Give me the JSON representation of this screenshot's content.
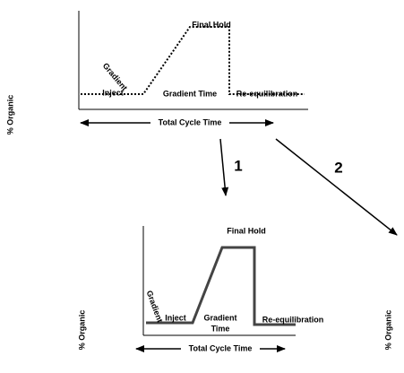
{
  "top": {
    "y_label": "% Organic",
    "final_hold": "Final Hold",
    "gradient": "Gradient",
    "inject": "Inject",
    "gradient_time": "Gradient Time",
    "re_equilibration": "Re-equilibration",
    "total_cycle_time": "Total Cycle Time"
  },
  "arrows": [
    "1",
    "2"
  ],
  "bottom": {
    "y_label": "% Organic",
    "final_hold": "Final Hold",
    "gradient": "Gradient",
    "inject": "Inject",
    "gradient_time": [
      "Gradient",
      "Time"
    ],
    "re_equilibration": "Re-equilibration",
    "total_cycle_time": "Total Cycle Time"
  },
  "right_y_label": "% Organic"
}
